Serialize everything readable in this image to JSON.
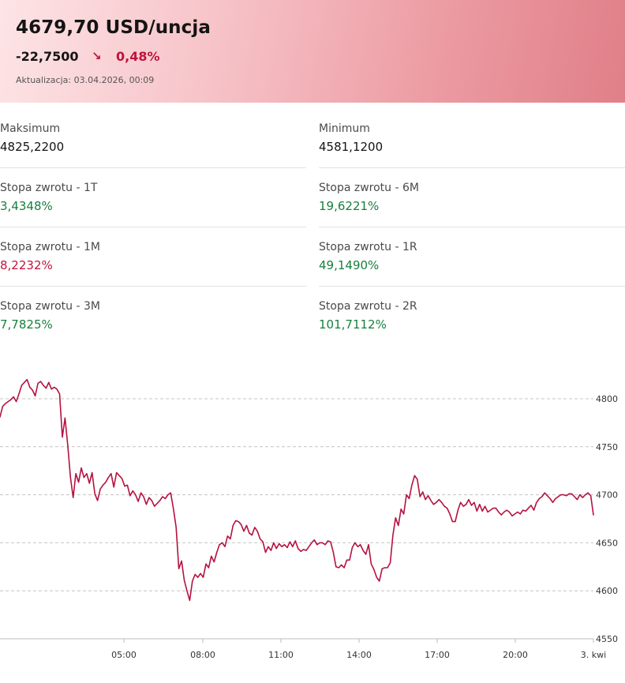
{
  "quote": {
    "price": "4679,70 USD/uncja",
    "change_abs": "-22,7500",
    "direction_icon": "arrow-down-right-icon",
    "direction_glyph": "↘",
    "change_pct": "0,48%",
    "updated": "Aktualizacja: 03.04.2026, 00:09"
  },
  "stats": [
    {
      "label": "Maksimum",
      "value": "4825,2200",
      "tone": "neutral"
    },
    {
      "label": "Minimum",
      "value": "4581,1200",
      "tone": "neutral"
    },
    {
      "label": "Stopa zwrotu - 1T",
      "value": "3,4348%",
      "tone": "positive"
    },
    {
      "label": "Stopa zwrotu - 6M",
      "value": "19,6221%",
      "tone": "positive"
    },
    {
      "label": "Stopa zwrotu - 1M",
      "value": "8,2232%",
      "tone": "negative"
    },
    {
      "label": "Stopa zwrotu - 1R",
      "value": "49,1490%",
      "tone": "positive"
    },
    {
      "label": "Stopa zwrotu - 3M",
      "value": "7,7825%",
      "tone": "positive"
    },
    {
      "label": "Stopa zwrotu - 2R",
      "value": "101,7112%",
      "tone": "positive"
    }
  ],
  "colors": {
    "accent_negative": "#c0143c",
    "accent_positive": "#16803c",
    "line": "#b5123f"
  },
  "chart_data": {
    "type": "line",
    "title": "",
    "xlabel": "",
    "ylabel": "",
    "ylim": [
      4550,
      4800
    ],
    "y_ticks": [
      4550,
      4600,
      4650,
      4700,
      4750,
      4800
    ],
    "x_ticks": [
      "05:00",
      "08:00",
      "11:00",
      "14:00",
      "17:00",
      "20:00",
      "3. kwi"
    ],
    "grid": "horizontal dashed",
    "legend": "none",
    "series": [
      {
        "values": [
          4781,
          4792,
          4795,
          4797,
          4799,
          4802,
          4797,
          4805,
          4814,
          4817,
          4820,
          4812,
          4809,
          4803,
          4816,
          4818,
          4814,
          4811,
          4817,
          4810,
          4812,
          4810,
          4805,
          4760,
          4780,
          4752,
          4718,
          4697,
          4722,
          4713,
          4728,
          4718,
          4722,
          4712,
          4723,
          4701,
          4694,
          4706,
          4710,
          4713,
          4718,
          4722,
          4708,
          4723,
          4720,
          4717,
          4709,
          4710,
          4699,
          4704,
          4700,
          4693,
          4702,
          4698,
          4690,
          4697,
          4694,
          4688,
          4691,
          4694,
          4698,
          4696,
          4700,
          4702,
          4685,
          4666,
          4623,
          4631,
          4611,
          4600,
          4590,
          4610,
          4617,
          4614,
          4618,
          4614,
          4628,
          4624,
          4636,
          4630,
          4640,
          4648,
          4650,
          4646,
          4657,
          4654,
          4668,
          4673,
          4672,
          4669,
          4662,
          4668,
          4660,
          4658,
          4666,
          4662,
          4654,
          4651,
          4640,
          4646,
          4642,
          4650,
          4644,
          4649,
          4646,
          4648,
          4645,
          4651,
          4646,
          4652,
          4644,
          4641,
          4643,
          4642,
          4646,
          4650,
          4653,
          4648,
          4650,
          4650,
          4648,
          4652,
          4651,
          4640,
          4625,
          4624,
          4627,
          4624,
          4632,
          4632,
          4645,
          4650,
          4646,
          4648,
          4642,
          4638,
          4648,
          4628,
          4622,
          4614,
          4610,
          4623,
          4624,
          4624,
          4629,
          4658,
          4676,
          4668,
          4685,
          4680,
          4700,
          4696,
          4710,
          4720,
          4716,
          4698,
          4703,
          4695,
          4699,
          4694,
          4690,
          4692,
          4695,
          4692,
          4688,
          4686,
          4680,
          4672,
          4672,
          4684,
          4692,
          4688,
          4690,
          4695,
          4689,
          4692,
          4683,
          4690,
          4683,
          4688,
          4682,
          4684,
          4686,
          4686,
          4682,
          4679,
          4682,
          4684,
          4682,
          4678,
          4680,
          4682,
          4680,
          4684,
          4683,
          4686,
          4689,
          4684,
          4692,
          4696,
          4698,
          4702,
          4699,
          4696,
          4692,
          4696,
          4698,
          4700,
          4700,
          4699,
          4701,
          4701,
          4698,
          4695,
          4700,
          4697,
          4700,
          4702,
          4699,
          4679
        ]
      }
    ]
  }
}
